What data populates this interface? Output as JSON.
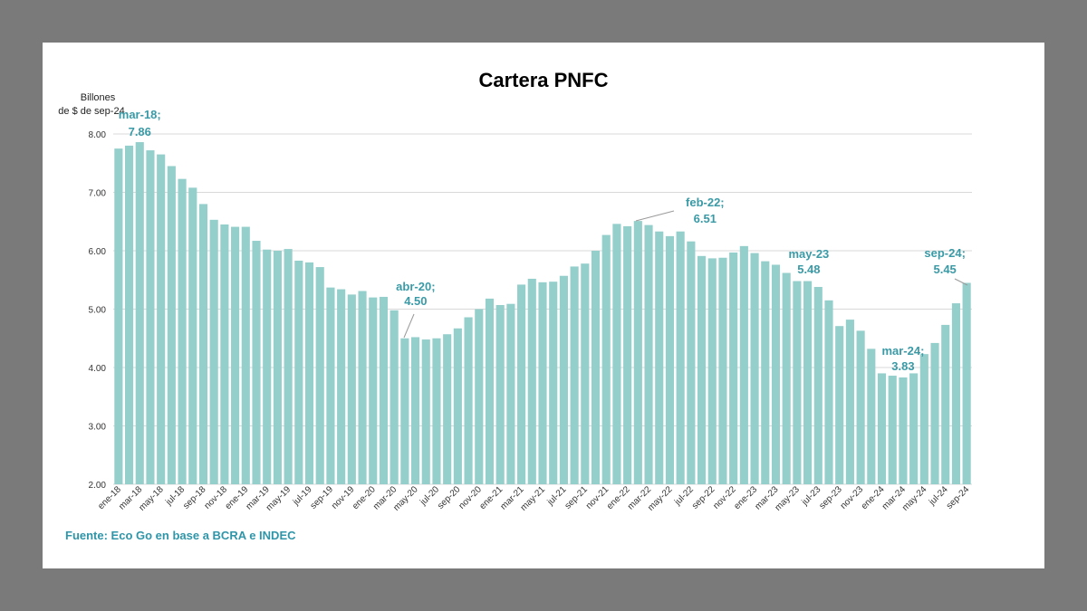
{
  "chart_data": {
    "type": "bar",
    "title": "Cartera PNFC",
    "ylabel": [
      "Billones",
      "de $ de sep-24"
    ],
    "ylim": [
      2.0,
      8.0
    ],
    "yticks": [
      "2.00",
      "3.00",
      "4.00",
      "5.00",
      "6.00",
      "7.00",
      "8.00"
    ],
    "grid": true,
    "bar_color": "#95cfcc",
    "grid_color": "#d9d9d9",
    "annotation_color": "#3a9aa6",
    "categories": [
      "ene-18",
      "feb-18",
      "mar-18",
      "abr-18",
      "may-18",
      "jun-18",
      "jul-18",
      "ago-18",
      "sep-18",
      "oct-18",
      "nov-18",
      "dic-18",
      "ene-19",
      "feb-19",
      "mar-19",
      "abr-19",
      "may-19",
      "jun-19",
      "jul-19",
      "ago-19",
      "sep-19",
      "oct-19",
      "nov-19",
      "dic-19",
      "ene-20",
      "feb-20",
      "mar-20",
      "abr-20",
      "may-20",
      "jun-20",
      "jul-20",
      "ago-20",
      "sep-20",
      "oct-20",
      "nov-20",
      "dic-20",
      "ene-21",
      "feb-21",
      "mar-21",
      "abr-21",
      "may-21",
      "jun-21",
      "jul-21",
      "ago-21",
      "sep-21",
      "oct-21",
      "nov-21",
      "dic-21",
      "ene-22",
      "feb-22",
      "mar-22",
      "abr-22",
      "may-22",
      "jun-22",
      "jul-22",
      "ago-22",
      "sep-22",
      "oct-22",
      "nov-22",
      "dic-22",
      "ene-23",
      "feb-23",
      "mar-23",
      "abr-23",
      "may-23",
      "jun-23",
      "jul-23",
      "ago-23",
      "sep-23",
      "oct-23",
      "nov-23",
      "dic-23",
      "ene-24",
      "feb-24",
      "mar-24",
      "abr-24",
      "may-24",
      "jun-24",
      "jul-24",
      "ago-24",
      "sep-24"
    ],
    "values": [
      7.75,
      7.8,
      7.86,
      7.72,
      7.65,
      7.45,
      7.23,
      7.08,
      6.8,
      6.53,
      6.45,
      6.41,
      6.41,
      6.17,
      6.02,
      6.0,
      6.03,
      5.83,
      5.8,
      5.72,
      5.37,
      5.34,
      5.25,
      5.31,
      5.2,
      5.21,
      4.98,
      4.5,
      4.52,
      4.48,
      4.5,
      4.57,
      4.67,
      4.86,
      5.0,
      5.18,
      5.07,
      5.09,
      5.42,
      5.52,
      5.46,
      5.47,
      5.57,
      5.73,
      5.78,
      6.0,
      6.27,
      6.46,
      6.42,
      6.51,
      6.44,
      6.33,
      6.25,
      6.33,
      6.16,
      5.91,
      5.87,
      5.88,
      5.97,
      6.08,
      5.96,
      5.82,
      5.76,
      5.62,
      5.48,
      5.48,
      5.38,
      5.15,
      4.71,
      4.82,
      4.63,
      4.32,
      3.9,
      3.86,
      3.83,
      3.9,
      4.23,
      4.42,
      4.73,
      5.1,
      5.45
    ],
    "xtick_labels": [
      "ene-18",
      "mar-18",
      "may-18",
      "jul-18",
      "sep-18",
      "nov-18",
      "ene-19",
      "mar-19",
      "may-19",
      "jul-19",
      "sep-19",
      "nov-19",
      "ene-20",
      "mar-20",
      "may-20",
      "jul-20",
      "sep-20",
      "nov-20",
      "ene-21",
      "mar-21",
      "may-21",
      "jul-21",
      "sep-21",
      "nov-21",
      "ene-22",
      "mar-22",
      "may-22",
      "jul-22",
      "sep-22",
      "nov-22",
      "ene-23",
      "mar-23",
      "may-23",
      "jul-23",
      "sep-23",
      "nov-23",
      "ene-24",
      "mar-24",
      "may-24",
      "jul-24",
      "sep-24"
    ],
    "annotations": [
      {
        "category": "mar-18",
        "lines": [
          "mar-18;",
          "7.86"
        ]
      },
      {
        "category": "abr-20",
        "lines": [
          "abr-20;",
          "4.50"
        ]
      },
      {
        "category": "feb-22",
        "lines": [
          "feb-22;",
          "6.51"
        ]
      },
      {
        "category": "may-23",
        "lines": [
          "may-23",
          "5.48"
        ]
      },
      {
        "category": "mar-24",
        "lines": [
          "mar-24;",
          "3.83"
        ]
      },
      {
        "category": "sep-24",
        "lines": [
          "sep-24;",
          "5.45"
        ]
      }
    ],
    "source": "Fuente: Eco Go en base a BCRA e INDEC"
  }
}
